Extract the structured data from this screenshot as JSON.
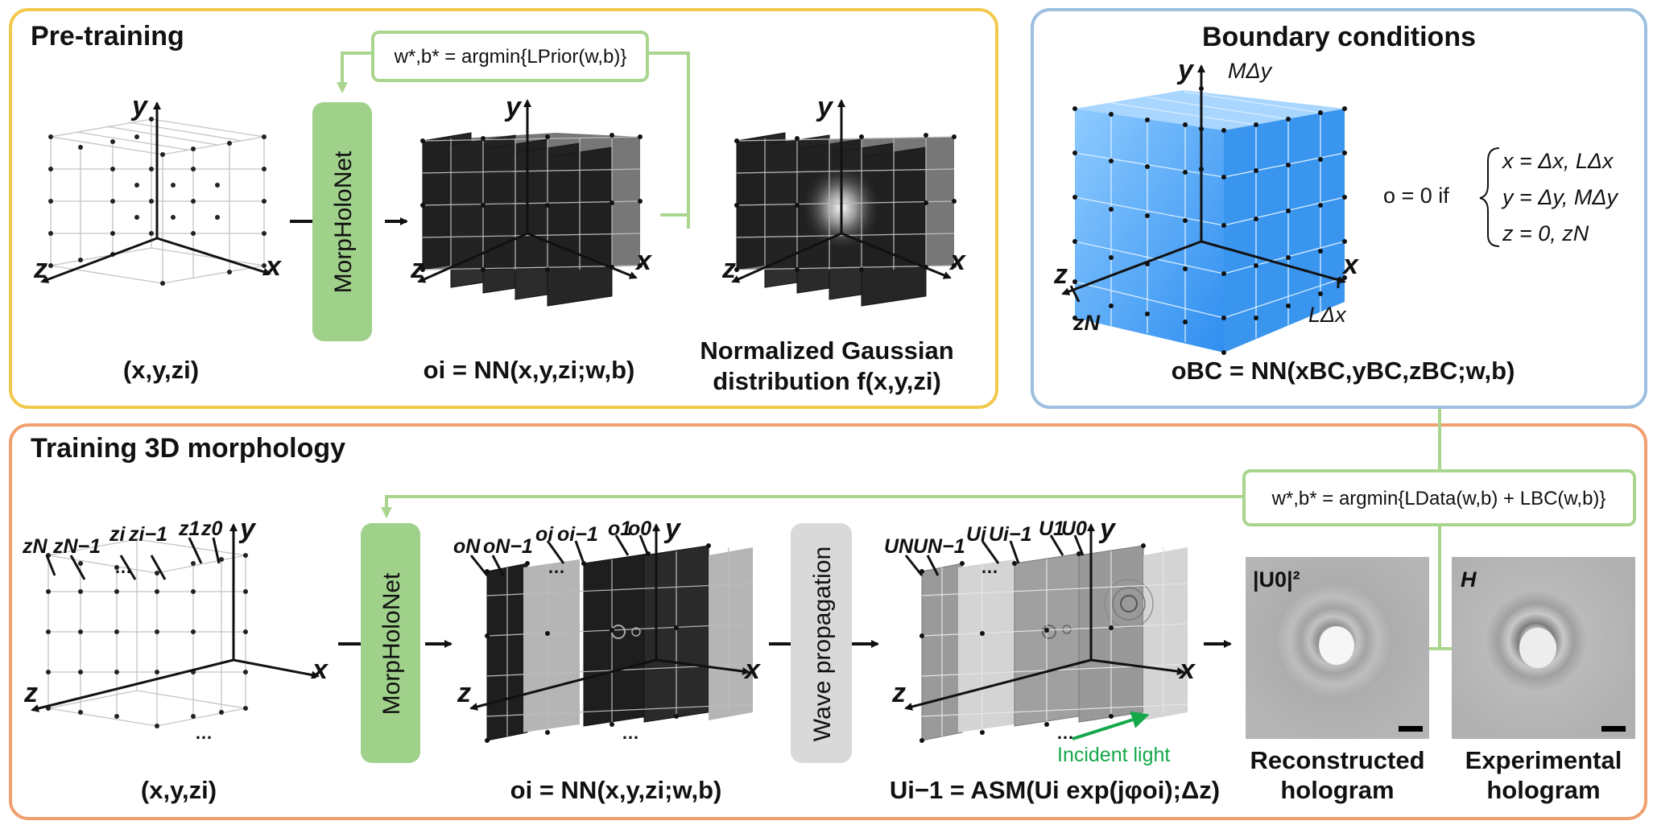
{
  "panels": {
    "pretraining": {
      "title": "Pre-training",
      "input_caption": "(x,y,zi)",
      "net_label": "MorpHoloNet",
      "prior_eq": "w*,b* = argmin{LPrior(w,b)}",
      "output_caption": "oi = NN(x,y,zi;w,b)",
      "gauss_caption_1": "Normalized Gaussian",
      "gauss_caption_2": "distribution f(x,y,zi)",
      "axis_x": "x",
      "axis_y": "y",
      "axis_z": "z"
    },
    "boundary": {
      "title": "Boundary conditions",
      "label_mdy": "MΔy",
      "label_ldx": "LΔx",
      "label_zn": "zN",
      "cond_lead": "o = 0  if",
      "cond_1": "x = Δx, LΔx",
      "cond_2": "y = Δy, MΔy",
      "cond_3": "z = 0, zN",
      "caption": "oBC = NN(xBC,yBC,zBC;w,b)"
    },
    "training": {
      "title": "Training 3D morphology",
      "data_eq": "w*,b* = argmin{LData(w,b) + LBC(w,b)}",
      "input_caption": "(x,y,zi)",
      "net_label": "MorpHoloNet",
      "output_caption": "oi = NN(x,y,zi;w,b)",
      "wave_label": "Wave propagation",
      "asm_caption": "Ui−1 = ASM(Ui exp(jφoi);Δz)",
      "incident_light": "Incident  light",
      "recon_tag": "|U0|²",
      "recon_caption_1": "Reconstructed",
      "recon_caption_2": "hologram",
      "exp_tag": "H",
      "exp_caption_1": "Experimental",
      "exp_caption_2": "hologram",
      "z_labels": [
        "zN",
        "zN−1",
        "zi",
        "zi−1",
        "z1",
        "z0"
      ],
      "o_labels": [
        "oN",
        "oN−1",
        "oi",
        "oi−1",
        "o1",
        "o0"
      ],
      "u_labels": [
        "UN",
        "UN−1",
        "Ui",
        "Ui−1",
        "U1",
        "U0"
      ],
      "ellipsis": "…"
    }
  },
  "colors": {
    "pretraining_border": "#f2c94c",
    "boundary_border": "#9dbfe0",
    "training_border": "#f0a070",
    "net_box": "#9fd18a",
    "wave_box": "#d9d9d9",
    "connector": "#a9d58f",
    "cube_blue": "#4aa3f0",
    "incident_green": "#15a84a"
  }
}
